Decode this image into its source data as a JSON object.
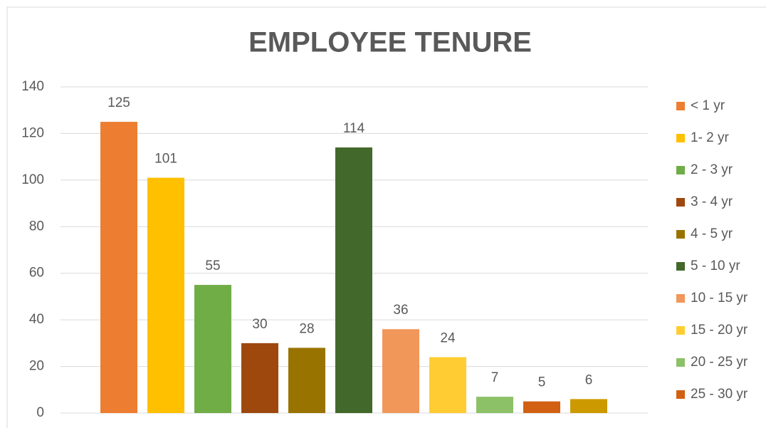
{
  "chart_data": {
    "type": "bar",
    "title": "EMPLOYEE TENURE",
    "categories": [
      "< 1 yr",
      "1- 2 yr",
      "2 - 3 yr",
      "3 - 4 yr",
      "4 - 5 yr",
      "5 - 10 yr",
      "10 - 15 yr",
      "15 - 20 yr",
      "20 - 25 yr",
      "25 - 30 yr",
      null
    ],
    "values": [
      125,
      101,
      55,
      30,
      28,
      114,
      36,
      24,
      7,
      5,
      6
    ],
    "colors": [
      "#ED7D31",
      "#FFC000",
      "#70AD47",
      "#9E480E",
      "#997300",
      "#43682B",
      "#F1975A",
      "#FFCD33",
      "#8CC168",
      "#D26012",
      "#CC9A00"
    ],
    "ylim": [
      0,
      140
    ],
    "yticks": [
      0,
      20,
      40,
      60,
      80,
      100,
      120,
      140
    ],
    "grid": true,
    "legend": "right"
  }
}
